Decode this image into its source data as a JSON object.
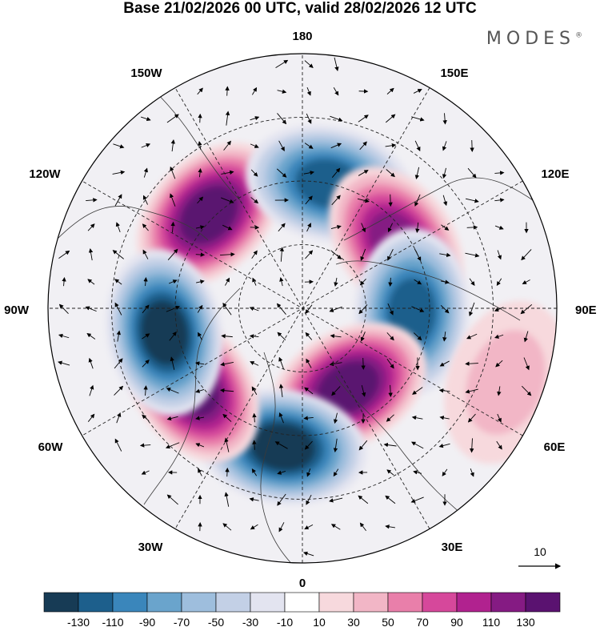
{
  "title": "Base 21/02/2026 00 UTC, valid 28/02/2026 12 UTC",
  "brand": "MODES",
  "brand_mark": "®",
  "longitude_labels": {
    "top": "180",
    "bottom": "0",
    "left": "90W",
    "right": "90E",
    "upper_left_1": "150W",
    "upper_left_2": "120W",
    "upper_right_1": "150E",
    "upper_right_2": "120E",
    "lower_left_1": "60W",
    "lower_left_2": "30W",
    "lower_right_1": "60E",
    "lower_right_2": "30E"
  },
  "vector_reference": {
    "value": "10"
  },
  "colorbar": {
    "ticks": [
      "-130",
      "-110",
      "-90",
      "-70",
      "-50",
      "-30",
      "-10",
      "10",
      "30",
      "50",
      "70",
      "90",
      "110",
      "130"
    ],
    "colors": [
      "#173b55",
      "#1d5f8c",
      "#3a86bb",
      "#6aa4cc",
      "#9ebedd",
      "#c3d0e6",
      "#e3e4f0",
      "#ffffff",
      "#f7d9dd",
      "#f2b6c6",
      "#e97faa",
      "#d6489b",
      "#b1228f",
      "#851b83",
      "#5a1270"
    ]
  },
  "anomaly_centers": [
    {
      "sign": "positive",
      "value": 130,
      "lon": -135,
      "r": 0.52
    },
    {
      "sign": "negative",
      "value": -110,
      "lon": 168,
      "r": 0.5
    },
    {
      "sign": "positive",
      "value": 110,
      "lon": 125,
      "r": 0.45
    },
    {
      "sign": "negative",
      "value": -110,
      "lon": 88,
      "r": 0.43
    },
    {
      "sign": "positive",
      "value": 130,
      "lon": 30,
      "r": 0.36
    },
    {
      "sign": "negative",
      "value": -130,
      "lon": -8,
      "r": 0.55
    },
    {
      "sign": "positive",
      "value": 130,
      "lon": -55,
      "r": 0.53
    },
    {
      "sign": "negative",
      "value": -130,
      "lon": -80,
      "r": 0.55
    },
    {
      "sign": "positive",
      "value": 30,
      "lon": 70,
      "r": 0.85
    }
  ]
}
